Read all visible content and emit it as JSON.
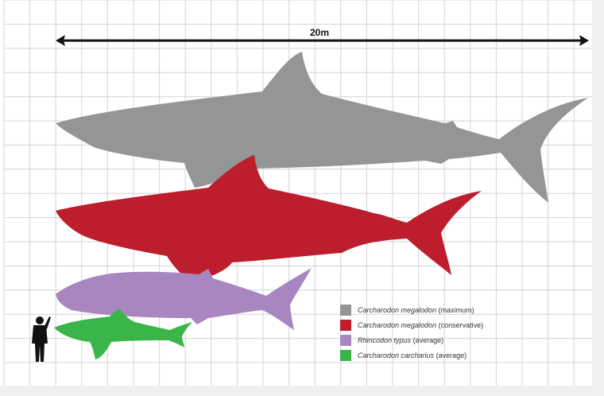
{
  "scale": {
    "label": "20m"
  },
  "legend": [
    {
      "species": "Carcharodon megalodon",
      "note": "(maximum)",
      "color": "#939596"
    },
    {
      "species": "Carcharodon megalodon",
      "note": "(conservative)",
      "color": "#bd1e2d"
    },
    {
      "species": "Rhincodon typus",
      "note": "(average)",
      "color": "#a887c1"
    },
    {
      "species": "Carcharodon carcharius",
      "note": "(average)",
      "color": "#3ab54a"
    }
  ],
  "colors": {
    "human": "#111111",
    "grid": "#d4d4d4",
    "background": "#ffffff"
  }
}
